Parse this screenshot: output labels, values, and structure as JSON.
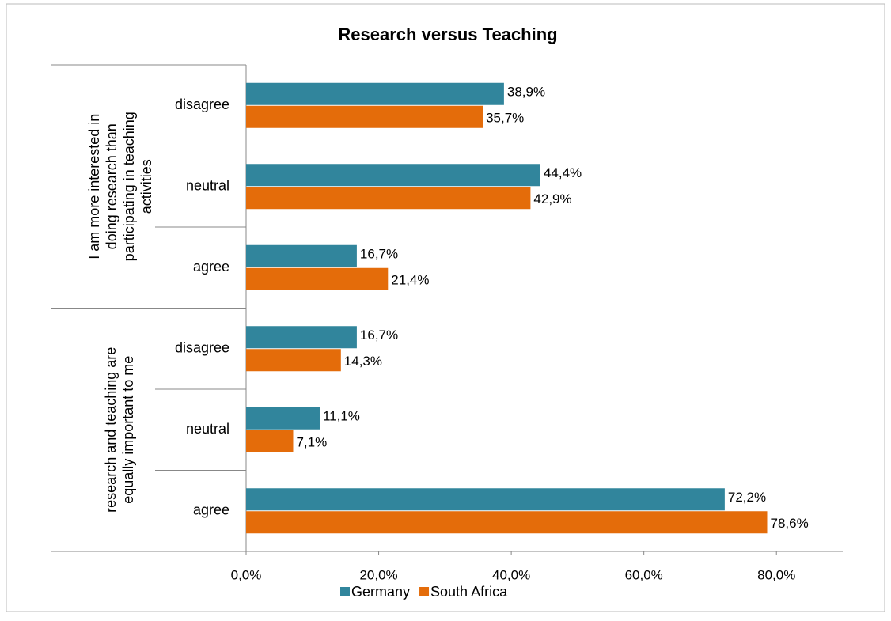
{
  "chart_data": {
    "type": "bar",
    "orientation": "horizontal",
    "title": "Research versus Teaching",
    "groups": [
      {
        "label": [
          "I am more interested in",
          "doing research than",
          "participating in teaching",
          "activities"
        ],
        "categories": [
          "disagree",
          "neutral",
          "agree"
        ]
      },
      {
        "label": [
          "research and teaching are",
          "equally important to me"
        ],
        "categories": [
          "disagree",
          "neutral",
          "agree"
        ]
      }
    ],
    "series": [
      {
        "name": "Germany",
        "color": "#31859c",
        "values": [
          38.9,
          44.4,
          16.7,
          16.7,
          11.1,
          72.2
        ],
        "value_labels": [
          "38,9%",
          "44,4%",
          "16,7%",
          "16,7%",
          "11,1%",
          "72,2%"
        ]
      },
      {
        "name": "South Africa",
        "color": "#e46c0a",
        "values": [
          35.7,
          42.9,
          21.4,
          14.3,
          7.1,
          78.6
        ],
        "value_labels": [
          "35,7%",
          "42,9%",
          "21,4%",
          "14,3%",
          "7,1%",
          "78,6%"
        ]
      }
    ],
    "xlim": [
      0,
      90
    ],
    "xticks": [
      {
        "value": 0,
        "label": "0,0%"
      },
      {
        "value": 20,
        "label": "20,0%"
      },
      {
        "value": 40,
        "label": "40,0%"
      },
      {
        "value": 60,
        "label": "60,0%"
      },
      {
        "value": 80,
        "label": "80,0%"
      }
    ],
    "legend": "bottom"
  }
}
